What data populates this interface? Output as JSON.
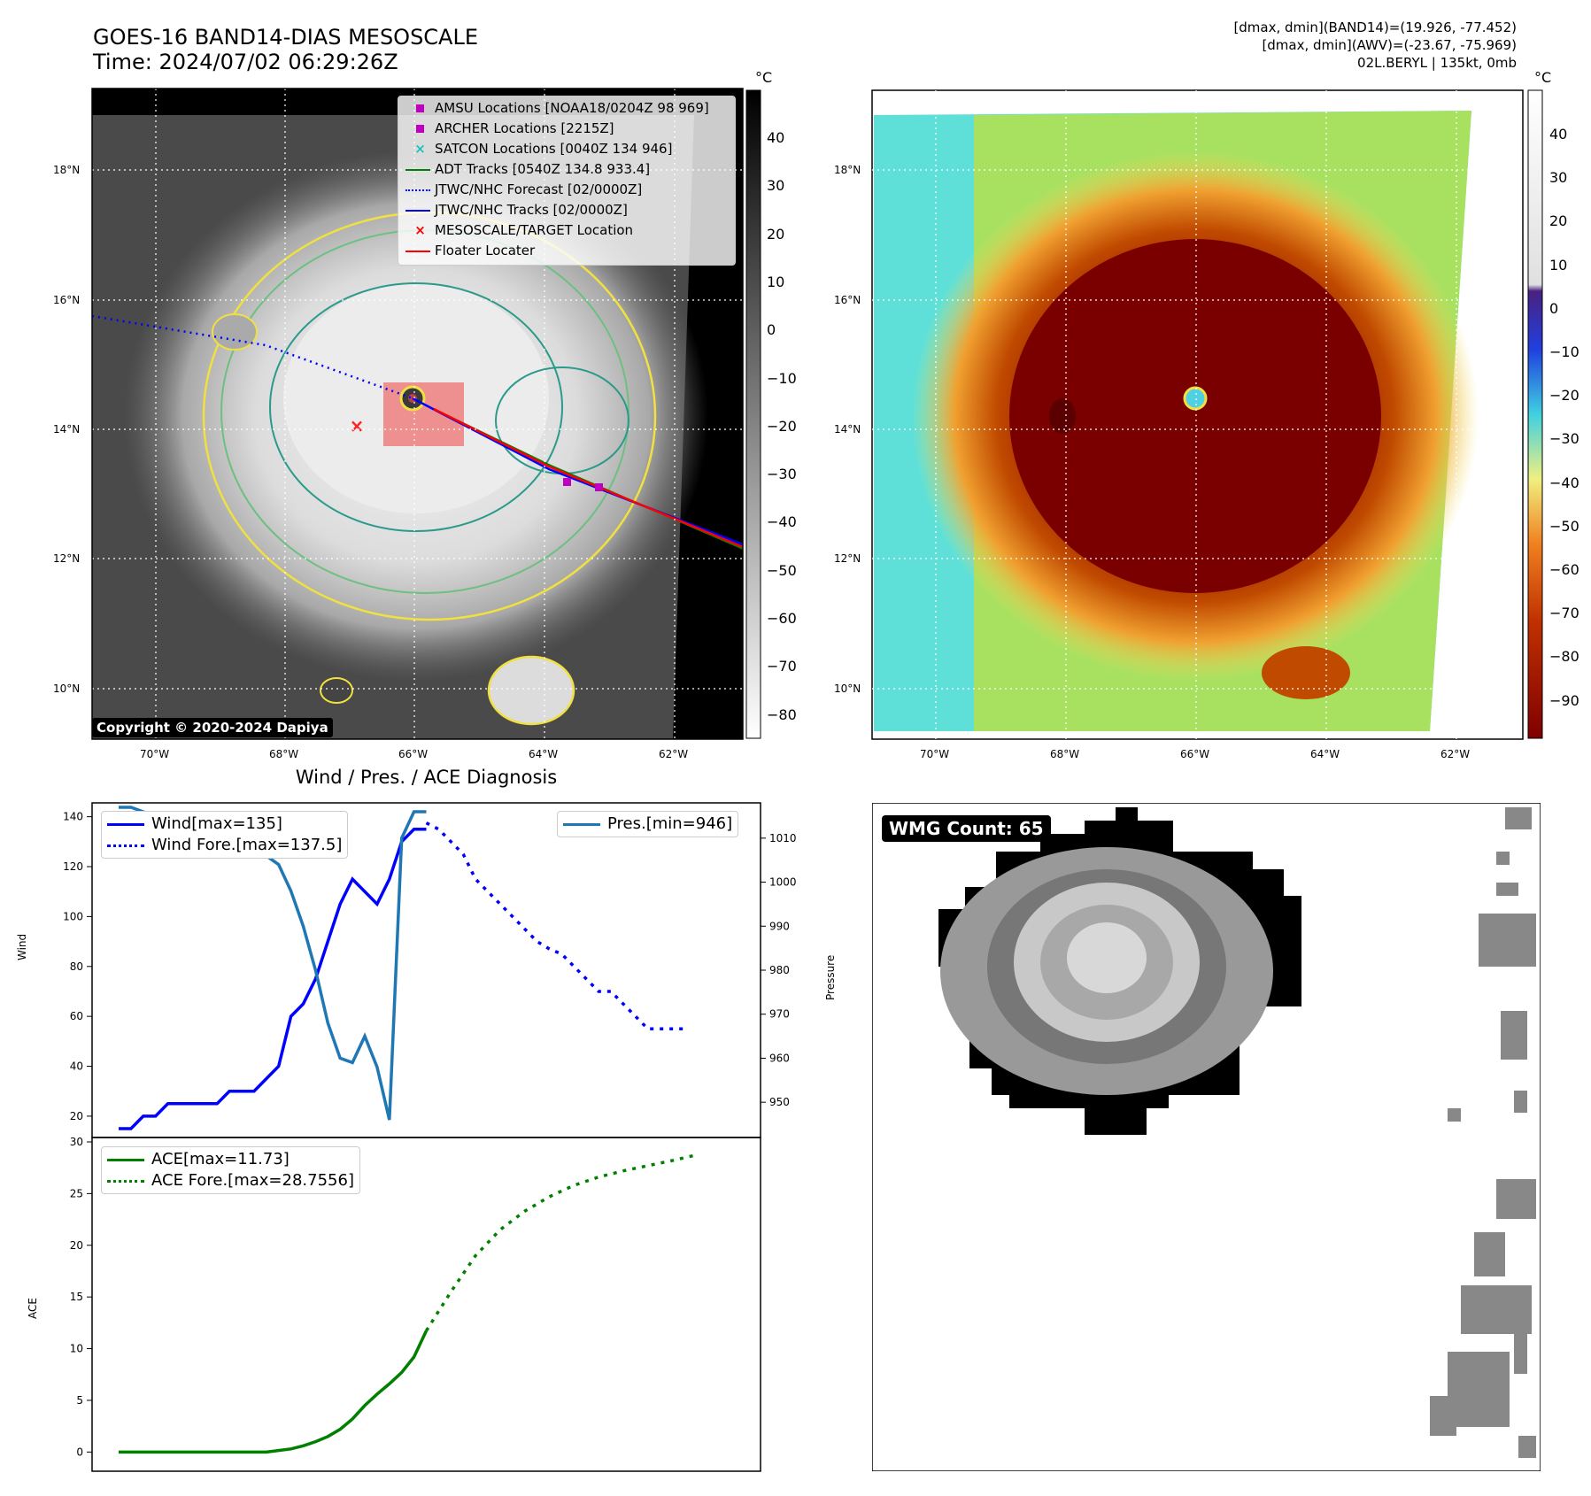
{
  "header": {
    "title_line1": "GOES-16 BAND14-DIAS MESOSCALE",
    "title_line2": "Time: 2024/07/02 06:29:26Z",
    "right_line1": "[dmax, dmin](BAND14)=(19.926, -77.452)",
    "right_line2": "[dmax, dmin](AWV)=(-23.67, -75.969)",
    "right_line3": "02L.BERYL | 135kt, 0mb"
  },
  "map": {
    "lat_labels": [
      "18°N",
      "16°N",
      "14°N",
      "12°N",
      "10°N"
    ],
    "lon_labels": [
      "70°W",
      "68°W",
      "66°W",
      "64°W",
      "62°W"
    ],
    "copyright": "Copyright © 2020-2024 Dapiya",
    "legend": [
      {
        "label": "AMSU Locations [NOAA18/0204Z 98 969]",
        "color": "#c000c0",
        "marker": "square"
      },
      {
        "label": "ARCHER Locations [2215Z]",
        "color": "#c000c0",
        "marker": "square"
      },
      {
        "label": "SATCON Locations [0040Z 134 946]",
        "color": "#20c0c0",
        "marker": "x"
      },
      {
        "label": "ADT Tracks [0540Z 134.8 933.4]",
        "color": "#008000",
        "marker": "line"
      },
      {
        "label": "JTWC/NHC Forecast [02/0000Z]",
        "color": "#0000ff",
        "marker": "dotted"
      },
      {
        "label": "JTWC/NHC Tracks [02/0000Z]",
        "color": "#0000ff",
        "marker": "line-dot"
      },
      {
        "label": "MESOSCALE/TARGET Location",
        "color": "#ff0000",
        "marker": "x"
      },
      {
        "label": "Floater Locater",
        "color": "#ff0000",
        "marker": "line"
      }
    ],
    "colorbar1": {
      "unit": "°C",
      "ticks": [
        "40",
        "30",
        "20",
        "10",
        "0",
        "−10",
        "−20",
        "−30",
        "−40",
        "−50",
        "−60",
        "−70",
        "−80"
      ]
    },
    "colorbar2": {
      "unit": "°C",
      "ticks": [
        "40",
        "30",
        "20",
        "10",
        "0",
        "−10",
        "−20",
        "−30",
        "−40",
        "−50",
        "−60",
        "−70",
        "−80",
        "−90"
      ]
    }
  },
  "diag": {
    "title": "Wind / Pres. / ACE Diagnosis",
    "wind_ylabel": "Wind",
    "pres_ylabel": "Pressure",
    "ace_ylabel": "ACE",
    "wind_ticks": [
      "140",
      "120",
      "100",
      "80",
      "60",
      "40",
      "20"
    ],
    "pres_ticks": [
      "1010",
      "1000",
      "990",
      "980",
      "970",
      "960",
      "950"
    ],
    "ace_ticks": [
      "30",
      "25",
      "20",
      "15",
      "10",
      "5",
      "0"
    ],
    "legend_wind": "Wind[max=135]",
    "legend_wind_fore": "Wind Fore.[max=137.5]",
    "legend_pres": "Pres.[min=946]",
    "legend_ace": "ACE[max=11.73]",
    "legend_ace_fore": "ACE Fore.[max=28.7556]"
  },
  "wmg": {
    "badge": "WMG Count: 65"
  },
  "colors": {
    "wind": "#0000ff",
    "pres": "#1f77b4",
    "ace": "#008000"
  },
  "chart_data": [
    {
      "type": "line",
      "title": "Wind / Pres. / ACE Diagnosis",
      "ylabel": "Wind",
      "ylim": [
        15,
        142
      ],
      "series": [
        {
          "name": "Wind[max=135]",
          "x": [
            0,
            1,
            2,
            3,
            4,
            5,
            6,
            7,
            8,
            9,
            10,
            11,
            12,
            13,
            14,
            15,
            16,
            17,
            18,
            19,
            20,
            21,
            22,
            23,
            24,
            25
          ],
          "values": [
            15,
            15,
            20,
            20,
            25,
            25,
            25,
            25,
            25,
            30,
            30,
            30,
            35,
            40,
            60,
            65,
            75,
            90,
            105,
            115,
            110,
            105,
            115,
            130,
            135,
            135
          ]
        },
        {
          "name": "Wind Fore.[max=137.5]",
          "x": [
            25,
            26,
            27,
            28,
            29,
            30,
            31,
            32,
            33,
            34,
            35,
            36,
            37,
            38,
            39,
            40,
            41,
            42,
            43,
            44,
            45,
            46
          ],
          "values": [
            137.5,
            135,
            130,
            125,
            115,
            110,
            105,
            100,
            95,
            90,
            87,
            85,
            80,
            75,
            70,
            70,
            65,
            60,
            55,
            55,
            55,
            55
          ]
        }
      ]
    },
    {
      "type": "line",
      "ylabel": "Pressure",
      "ylim": [
        944,
        1016
      ],
      "series": [
        {
          "name": "Pres.[min=946]",
          "x": [
            0,
            1,
            2,
            3,
            4,
            5,
            6,
            7,
            8,
            9,
            10,
            11,
            12,
            13,
            14,
            15,
            16,
            17,
            18,
            19,
            20,
            21,
            22,
            23,
            24,
            25
          ],
          "values": [
            1017,
            1017,
            1016,
            1015,
            1015,
            1014,
            1014,
            1013,
            1013,
            1013,
            1012,
            1010,
            1006,
            1004,
            998,
            990,
            980,
            968,
            960,
            959,
            965,
            958,
            946,
            1010,
            1016,
            1016
          ]
        }
      ]
    },
    {
      "type": "line",
      "ylabel": "ACE",
      "ylim": [
        -1,
        30
      ],
      "series": [
        {
          "name": "ACE[max=11.73]",
          "x": [
            0,
            2,
            4,
            6,
            8,
            10,
            12,
            14,
            15,
            16,
            17,
            18,
            19,
            20,
            21,
            22,
            23,
            24,
            25
          ],
          "values": [
            0,
            0,
            0,
            0,
            0,
            0,
            0,
            0.3,
            0.6,
            1.0,
            1.5,
            2.2,
            3.2,
            4.5,
            5.6,
            6.6,
            7.7,
            9.2,
            11.73
          ]
        },
        {
          "name": "ACE Fore.[max=28.7556]",
          "x": [
            25,
            27,
            29,
            31,
            33,
            35,
            37,
            39,
            41,
            43,
            45,
            47
          ],
          "values": [
            11.73,
            15.5,
            19,
            21.5,
            23.3,
            24.7,
            25.8,
            26.6,
            27.2,
            27.7,
            28.2,
            28.7556
          ]
        }
      ]
    }
  ]
}
